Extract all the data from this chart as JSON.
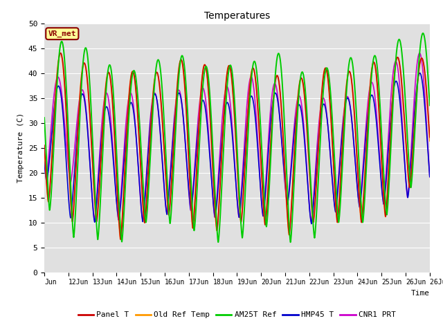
{
  "title": "Temperatures",
  "ylabel": "Temperature (C)",
  "xlabel": "Time",
  "ylim": [
    0,
    50
  ],
  "xlim_days": [
    11,
    27
  ],
  "background_color": "#e0e0e0",
  "annotation_text": "VR_met",
  "annotation_bg": "#ffff99",
  "annotation_border": "#8b0000",
  "series_order": [
    "CNR1 PRT",
    "HMP45 T",
    "Old Ref Temp",
    "Panel T",
    "AM25T Ref"
  ],
  "legend_order": [
    "Panel T",
    "Old Ref Temp",
    "AM25T Ref",
    "HMP45 T",
    "CNR1 PRT"
  ],
  "series": {
    "Panel T": {
      "color": "#cc0000",
      "lw": 1.2
    },
    "Old Ref Temp": {
      "color": "#ff9900",
      "lw": 1.2
    },
    "AM25T Ref": {
      "color": "#00cc00",
      "lw": 1.4
    },
    "HMP45 T": {
      "color": "#0000cc",
      "lw": 1.2
    },
    "CNR1 PRT": {
      "color": "#cc00cc",
      "lw": 1.2
    }
  },
  "start_day": 11,
  "end_day": 27,
  "points_per_day": 200,
  "figsize": [
    6.4,
    4.8
  ],
  "dpi": 100
}
